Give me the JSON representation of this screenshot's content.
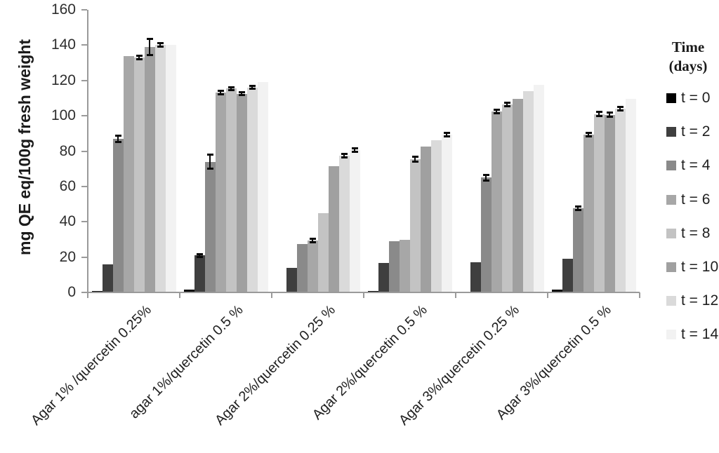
{
  "chart_data": {
    "type": "bar",
    "title": "",
    "ylabel": "mg QE eq/100g fresh weight",
    "xlabel": "",
    "ylim": [
      0,
      160
    ],
    "yticks": [
      0,
      20,
      40,
      60,
      80,
      100,
      120,
      140,
      160
    ],
    "grid": false,
    "legend": {
      "position": "right",
      "title_lines": [
        "Time",
        "(days)"
      ]
    },
    "categories": [
      "Agar 1% /quercetin 0.25%",
      "agar 1%/quercetin 0.5 %",
      "Agar 2%/quercetin 0.25 %",
      "Agar 2%/quercetin 0.5 %",
      "Agar 3%/quercetin 0.25 %",
      "Agar 3%/quercetin 0.5 %"
    ],
    "series": [
      {
        "name": "t = 0",
        "color": "#000000",
        "values": [
          1,
          1.8,
          0,
          0.8,
          0,
          1.5
        ],
        "errors": [
          0,
          0,
          0,
          0,
          0,
          0
        ]
      },
      {
        "name": "t = 2",
        "color": "#3f3f3f",
        "values": [
          16,
          21,
          14,
          16.5,
          17,
          19
        ],
        "errors": [
          0,
          0.8,
          0,
          0,
          0,
          0
        ]
      },
      {
        "name": "t = 4",
        "color": "#8a8a8a",
        "values": [
          87,
          74,
          27.5,
          29,
          65,
          47.5
        ],
        "errors": [
          1.8,
          4,
          0,
          0,
          1.5,
          1
        ]
      },
      {
        "name": "t = 6",
        "color": "#a7a7a7",
        "values": [
          134,
          113,
          29.5,
          29.8,
          102.5,
          89.5
        ],
        "errors": [
          0,
          1,
          1,
          0,
          1,
          1
        ]
      },
      {
        "name": "t = 8",
        "color": "#c3c3c3",
        "values": [
          133,
          115.5,
          45,
          75.5,
          106.5,
          101
        ],
        "errors": [
          1,
          0.8,
          0,
          1.5,
          1,
          1.2
        ]
      },
      {
        "name": "t = 10",
        "color": "#a0a0a0",
        "values": [
          139,
          112.5,
          71.5,
          82.5,
          109.5,
          100.5
        ],
        "errors": [
          4.5,
          0.8,
          0,
          0,
          0,
          1.2
        ]
      },
      {
        "name": "t = 12",
        "color": "#dadada",
        "values": [
          140,
          116,
          77.5,
          86,
          114,
          104
        ],
        "errors": [
          1,
          0.8,
          1,
          0,
          0,
          1
        ]
      },
      {
        "name": "t = 14",
        "color": "#f2f2f2",
        "values": [
          140,
          119,
          80.5,
          89.5,
          117.5,
          109.5
        ],
        "errors": [
          0,
          0,
          1,
          1,
          0,
          0
        ]
      }
    ]
  }
}
